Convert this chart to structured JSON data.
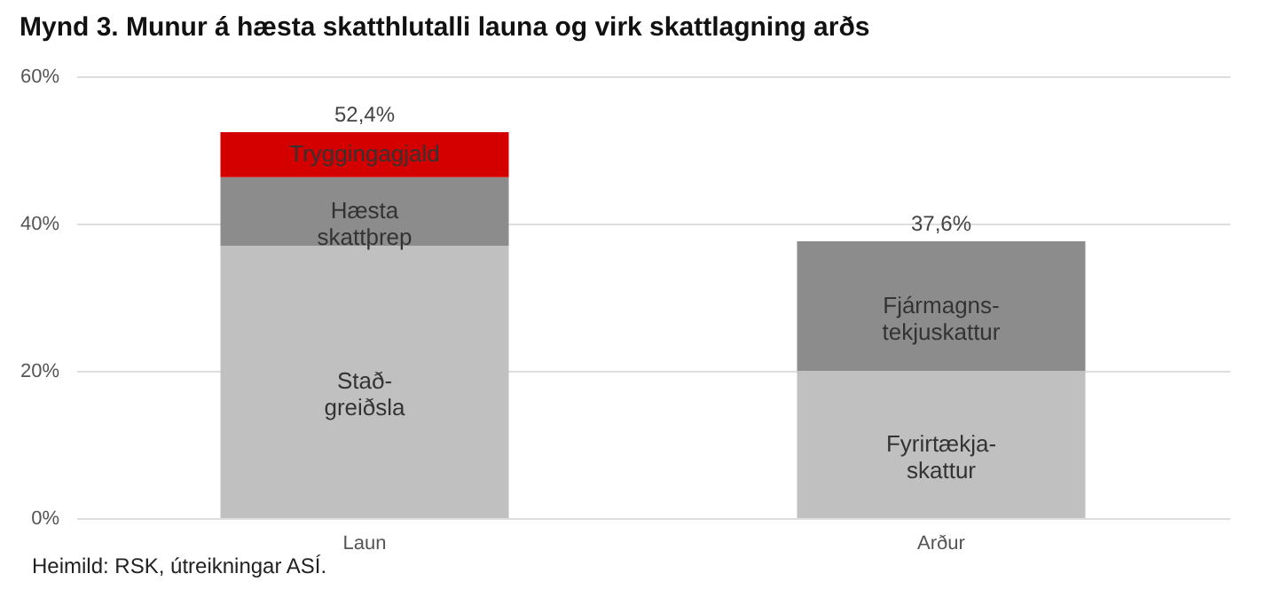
{
  "chart_data": {
    "type": "bar",
    "stacked": true,
    "title": "Mynd 3. Munur á hæsta skatthlutalli launa og virk skattlagning arðs",
    "categories": [
      "Laun",
      "Arður"
    ],
    "series": [
      {
        "name": "Stað-\ngreiðsla",
        "color": "#c0c0c0",
        "values": [
          37,
          null
        ]
      },
      {
        "name": "Hæsta\nskattþrep",
        "color": "#8c8c8c",
        "values": [
          9.3,
          null
        ]
      },
      {
        "name": "Tryggingagjald",
        "color": "#d40000",
        "values": [
          6.1,
          null
        ]
      },
      {
        "name": "Fyrirtækja-\nskattur",
        "color": "#c0c0c0",
        "values": [
          null,
          20
        ]
      },
      {
        "name": "Fjármagns-\ntekjuskattur",
        "color": "#8c8c8c",
        "values": [
          null,
          17.6
        ]
      }
    ],
    "totals": [
      "52,4%",
      "37,6%"
    ],
    "ylim": [
      0,
      60
    ],
    "yticks": [
      {
        "value": 0,
        "label": "0%"
      },
      {
        "value": 20,
        "label": "20%"
      },
      {
        "value": 40,
        "label": "40%"
      },
      {
        "value": 60,
        "label": "60%"
      }
    ],
    "grid": "y",
    "annotations": [
      "Heimild: RSK, útreikningar ASÍ."
    ]
  }
}
